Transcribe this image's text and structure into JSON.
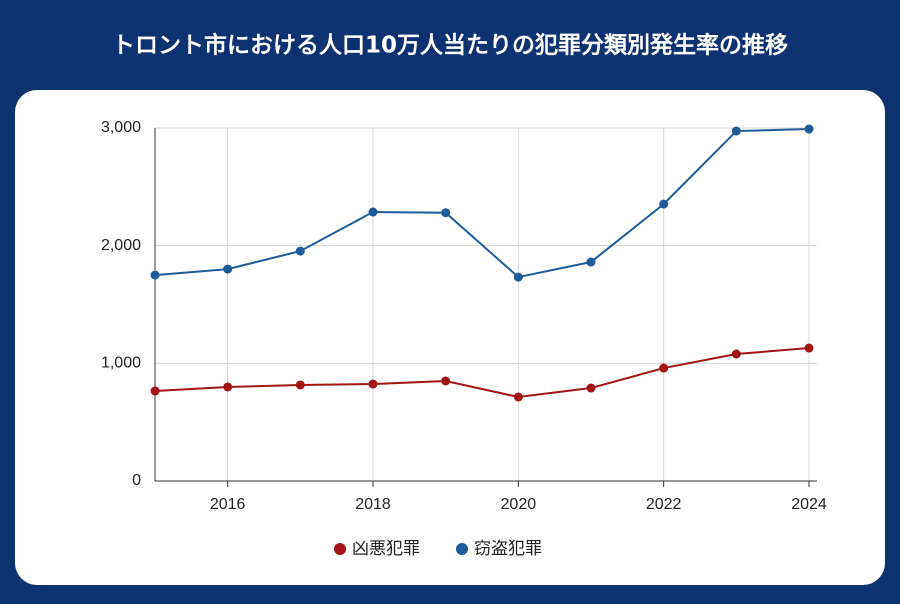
{
  "chart_data": {
    "type": "line",
    "title": "トロント市における人口10万人当たりの犯罪分類別発生率の推移",
    "x": [
      2015,
      2016,
      2017,
      2018,
      2019,
      2020,
      2021,
      2022,
      2023,
      2024
    ],
    "series": [
      {
        "name": "凶悪犯罪",
        "color": "#a31515",
        "values": [
          765,
          799,
          816,
          824,
          850,
          714,
          790,
          960,
          1079,
          1130
        ]
      },
      {
        "name": "窃盗犯罪",
        "color": "#1f5b99",
        "values": [
          1750,
          1801,
          1954,
          2286,
          2280,
          1733,
          1861,
          2353,
          2974,
          2991
        ]
      }
    ],
    "xlim": [
      2015,
      2024
    ],
    "xticks": [
      2016,
      2018,
      2020,
      2022,
      2024
    ],
    "ylim": [
      0,
      3000
    ],
    "yticks": [
      0,
      {
        "value": 1000,
        "label": "1,000"
      },
      {
        "value": 2000,
        "label": "2,000"
      },
      {
        "value": 3000,
        "label": "3,000"
      }
    ],
    "grid": true,
    "legend": "bottom"
  }
}
